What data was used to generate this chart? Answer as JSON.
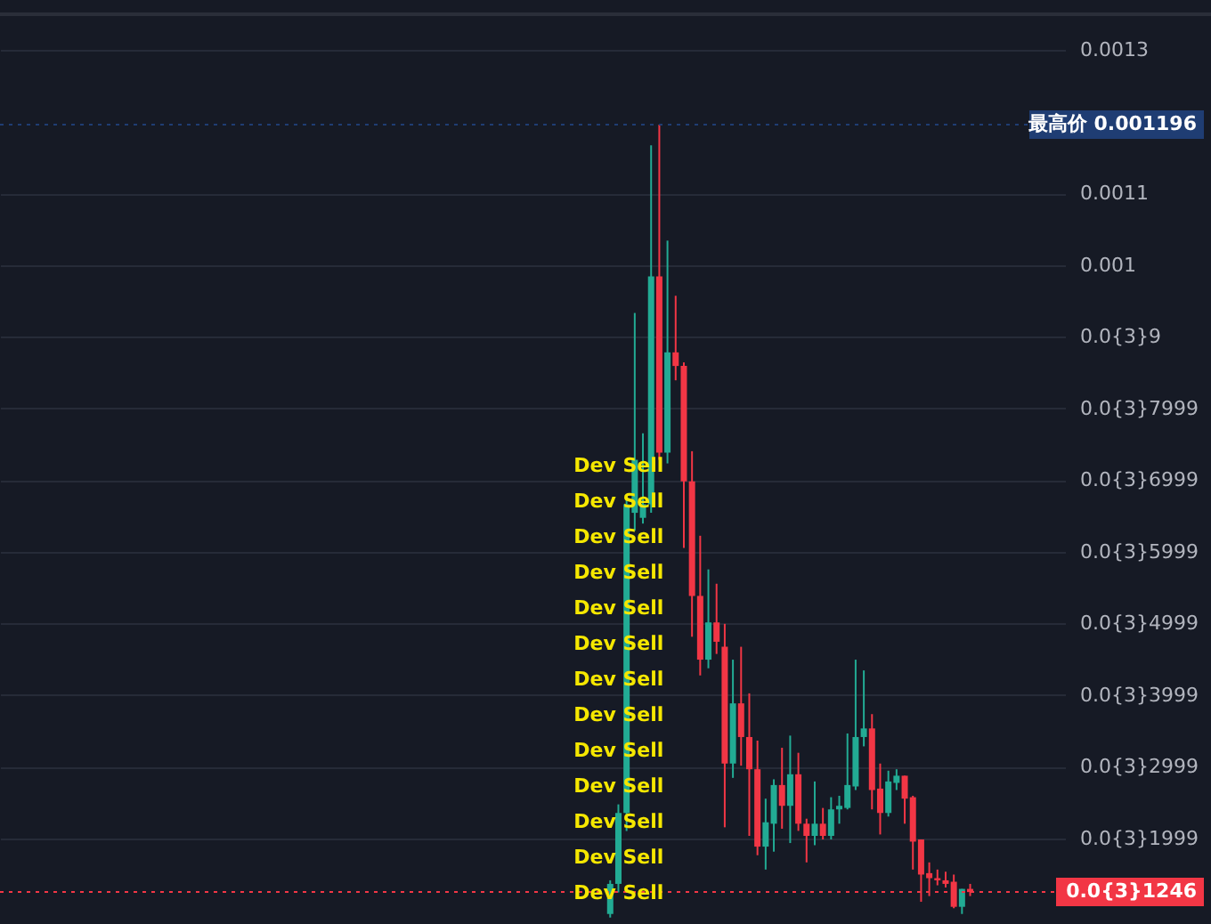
{
  "chart_data": {
    "type": "candlestick",
    "categories": [
      null,
      null,
      null,
      null,
      null,
      null,
      null,
      null,
      null,
      null,
      null,
      null,
      null,
      null,
      null,
      null,
      null,
      null,
      null,
      null,
      null,
      null,
      null,
      null,
      null,
      null,
      null,
      null,
      null,
      null,
      null,
      null,
      null,
      null,
      null,
      null,
      null,
      null,
      null,
      null,
      null,
      null,
      null,
      null,
      null,
      null,
      null,
      null,
      null,
      null,
      null,
      null,
      null,
      null,
      null,
      null,
      null,
      null,
      null,
      null,
      null,
      null,
      null,
      null,
      null,
      null,
      null,
      null,
      null,
      null,
      null,
      null,
      null,
      null,
      null,
      null,
      null,
      null,
      null,
      null,
      null,
      null,
      null,
      null,
      null,
      null,
      null,
      null,
      null,
      null,
      null,
      null,
      null,
      null,
      null,
      null,
      null,
      null,
      null,
      null,
      null,
      null,
      null,
      null,
      null,
      null,
      null,
      null,
      null,
      null,
      null,
      null,
      null,
      null,
      null,
      null,
      null,
      null,
      null,
      null,
      null,
      null,
      null,
      null,
      null,
      null,
      null,
      null
    ],
    "ohlc": [
      null,
      null,
      null,
      null,
      null,
      null,
      null,
      null,
      null,
      null,
      null,
      null,
      null,
      null,
      null,
      null,
      null,
      null,
      null,
      null,
      null,
      null,
      null,
      null,
      null,
      null,
      null,
      null,
      null,
      null,
      null,
      null,
      null,
      null,
      null,
      null,
      null,
      null,
      null,
      null,
      null,
      null,
      null,
      null,
      null,
      null,
      null,
      null,
      null,
      null,
      null,
      null,
      null,
      null,
      null,
      null,
      null,
      null,
      null,
      null,
      null,
      null,
      null,
      null,
      null,
      null,
      null,
      null,
      null,
      null,
      null,
      null,
      null,
      [
        9.4e-05,
        0.000141,
        8.9e-05,
        0.000136
      ],
      [
        0.000136,
        0.000247,
        0.000124,
        0.000235
      ],
      [
        0.000235,
        0.000679,
        0.00021,
        0.000666
      ],
      [
        0.000654,
        0.000933,
        0.000629,
        0.000728
      ],
      [
        0.000647,
        0.000765,
        0.000639,
        0.000666
      ],
      [
        0.000666,
        0.001167,
        0.000654,
        0.000984
      ],
      [
        0.000984,
        0.001196,
        0.000728,
        0.000738
      ],
      [
        0.000738,
        0.001034,
        0.000723,
        0.000878
      ],
      [
        0.000878,
        0.000957,
        0.000839,
        0.000859
      ],
      [
        0.000859,
        0.000864,
        0.000605,
        0.000698
      ],
      [
        0.000698,
        0.00074,
        0.000481,
        0.000538
      ],
      [
        0.000538,
        0.000622,
        0.000427,
        0.000449
      ],
      [
        0.000449,
        0.000575,
        0.000437,
        0.000501
      ],
      [
        0.000501,
        0.000555,
        0.000457,
        0.000474
      ],
      [
        0.000467,
        0.000499,
        0.000215,
        0.000304
      ],
      [
        0.000304,
        0.000449,
        0.000284,
        0.000388
      ],
      [
        0.000388,
        0.000467,
        0.000301,
        0.000341
      ],
      [
        0.000341,
        0.000402,
        0.000203,
        0.000296
      ],
      [
        0.000296,
        0.000336,
        0.000176,
        0.000188
      ],
      [
        0.000188,
        0.000255,
        0.000156,
        0.000222
      ],
      [
        0.00022,
        0.000282,
        0.000181,
        0.000274
      ],
      [
        0.000274,
        0.000326,
        0.000213,
        0.000245
      ],
      [
        0.000245,
        0.000343,
        0.000193,
        0.000289
      ],
      [
        0.000289,
        0.000319,
        0.00021,
        0.00022
      ],
      [
        0.00022,
        0.000227,
        0.000166,
        0.000203
      ],
      [
        0.000203,
        0.000279,
        0.00019,
        0.00022
      ],
      [
        0.00022,
        0.000242,
        0.000198,
        0.000203
      ],
      [
        0.000203,
        0.000257,
        0.000198,
        0.00024
      ],
      [
        0.00024,
        0.000259,
        0.00022,
        0.000245
      ],
      [
        0.000242,
        0.000346,
        0.00024,
        0.000274
      ],
      [
        0.000272,
        0.000449,
        0.000267,
        0.000341
      ],
      [
        0.000341,
        0.000434,
        0.000328,
        0.000353
      ],
      [
        0.000353,
        0.000373,
        0.00024,
        0.000267
      ],
      [
        0.000269,
        0.000304,
        0.000205,
        0.000235
      ],
      [
        0.000235,
        0.000294,
        0.00023,
        0.000279
      ],
      [
        0.000277,
        0.000296,
        0.000267,
        0.000287
      ],
      [
        0.000287,
        0.000287,
        0.00022,
        0.000255
      ],
      [
        0.000257,
        0.000259,
        0.000156,
        0.000195
      ],
      [
        0.000198,
        0.000198,
        0.000111,
        0.000149
      ],
      [
        0.000151,
        0.000166,
        0.000119,
        0.000144
      ],
      [
        0.000144,
        0.000156,
        0.000134,
        0.000141
      ],
      [
        0.000141,
        0.000153,
        0.000131,
        0.000136
      ],
      [
        0.000139,
        0.000149,
        0.000102,
        0.000104
      ],
      [
        0.000104,
        0.000129,
        9.4e-05,
        0.000129
      ],
      [
        0.000129,
        0.000136,
        0.000119,
        0.0001246
      ],
      null,
      null,
      null,
      null,
      null,
      null,
      null,
      null,
      null,
      null
    ],
    "colors": [
      null,
      null,
      null,
      null,
      null,
      null,
      null,
      null,
      null,
      null,
      null,
      null,
      null,
      null,
      null,
      null,
      null,
      null,
      null,
      null,
      null,
      null,
      null,
      null,
      null,
      null,
      null,
      null,
      null,
      null,
      null,
      null,
      null,
      null,
      null,
      null,
      null,
      null,
      null,
      null,
      null,
      null,
      null,
      null,
      null,
      null,
      null,
      null,
      null,
      null,
      null,
      null,
      null,
      null,
      null,
      null,
      null,
      null,
      null,
      null,
      null,
      null,
      null,
      null,
      null,
      null,
      null,
      null,
      null,
      null,
      null,
      null,
      null,
      "#22ab94",
      "#22ab94",
      "#22ab94",
      "#22ab94",
      "#22ab94",
      "#22ab94",
      "#f23645",
      "#22ab94",
      "#f23645",
      "#f23645",
      "#f23645",
      "#f23645",
      "#22ab94",
      "#f23645",
      "#f23645",
      "#22ab94",
      "#f23645",
      "#f23645",
      "#f23645",
      "#22ab94",
      "#22ab94",
      "#f23645",
      "#22ab94",
      "#f23645",
      "#f23645",
      "#22ab94",
      "#f23645",
      "#22ab94",
      "#22ab94",
      "#22ab94",
      "#22ab94",
      "#22ab94",
      "#f23645",
      "#f23645",
      "#22ab94",
      "#22ab94",
      "#f23645",
      "#f23645",
      "#f23645",
      "#f23645",
      "#f23645",
      "#f23645",
      "#f23645",
      "#22ab94",
      "#f23645",
      null,
      null,
      null,
      null,
      null,
      null,
      null,
      null,
      null,
      null
    ],
    "ylim": [
      8e-05,
      0.00135
    ],
    "yticks": [
      0.0013,
      0.0011,
      0.001,
      {
        "value": 0.0009,
        "label": "0.0{3}9"
      },
      {
        "value": 0.0007999,
        "label": "0.0{3}7999"
      },
      {
        "value": 0.0006999,
        "label": "0.0{3}6999"
      },
      {
        "value": 0.0005999,
        "label": "0.0{3}5999"
      },
      {
        "value": 0.0004999,
        "label": "0.0{3}4999"
      },
      {
        "value": 0.0003999,
        "label": "0.0{3}3999"
      },
      {
        "value": 0.0002999,
        "label": "0.0{3}2999"
      },
      {
        "value": 0.0001999,
        "label": "0.0{3}1999"
      }
    ],
    "ref_lines": [
      {
        "axis": "y",
        "value": 0.001196,
        "label": "最高价 0.001196",
        "color": "#1f3d73",
        "line_style": "dotted"
      },
      {
        "axis": "y",
        "value": 0.0001246,
        "label": "0.0{3}1246",
        "color": "#f23645",
        "line_style": "dotted"
      }
    ],
    "annotations": [
      "Dev Sell",
      "Dev Sell",
      "Dev Sell",
      "Dev Sell",
      "Dev Sell",
      "Dev Sell",
      "Dev Sell",
      "Dev Sell",
      "Dev Sell",
      "Dev Sell",
      "Dev Sell",
      "Dev Sell",
      "Dev Sell"
    ],
    "grid": "y",
    "tick_labels": "y"
  }
}
